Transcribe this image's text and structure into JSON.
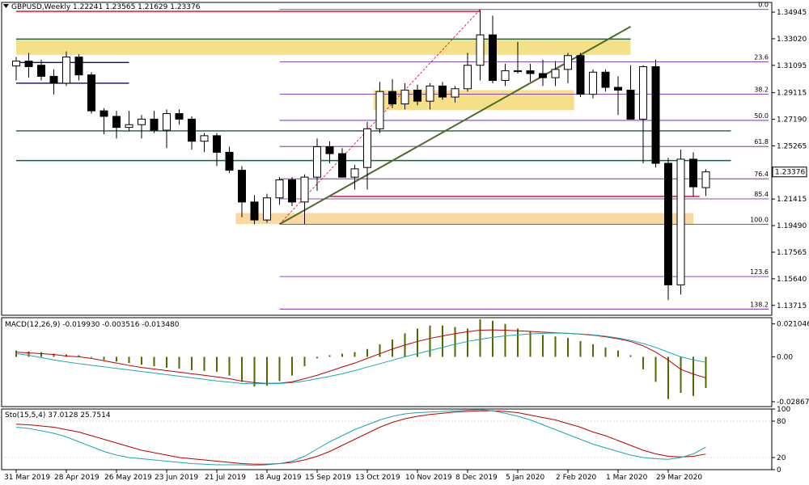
{
  "colors": {
    "background": "#ffffff",
    "grid_frame": "#000000",
    "bull_candle": "#ffffff",
    "bear_candle": "#000000",
    "fib_line": "#6a0dad",
    "red_level": "#e0002a",
    "green_level": "#1f5a3a",
    "trend_line": "#4e6b2a",
    "zone_yellow": "#f5e08a",
    "zone_orange": "#f9d9a3",
    "macd_hist": "#4e6b00",
    "macd_signal": "#c00000",
    "macd_line": "#1aa7b5",
    "sto_main": "#1aa7b5",
    "sto_signal": "#c00000",
    "price_box": "#ffffff"
  },
  "chart_data": [
    {
      "type": "candlestick",
      "title": "GBPUSD,Weekly",
      "ohlc_header": "1.22241 1.23565 1.21629 1.23376",
      "current_price_label": "1.23376",
      "yticks": [
        "1.34945",
        "1.33020",
        "1.31095",
        "1.29115",
        "1.27190",
        "1.25265",
        "1.23340",
        "1.21415",
        "1.19490",
        "1.17565",
        "1.15640",
        "1.13715"
      ],
      "ylim": [
        1.13,
        1.3565
      ],
      "xticks": [
        {
          "label": "31 Mar 2019",
          "i": 0
        },
        {
          "label": "28 Apr 2019",
          "i": 4
        },
        {
          "label": "26 May 2019",
          "i": 8
        },
        {
          "label": "23 Jun 2019",
          "i": 12
        },
        {
          "label": "21 Jul 2019",
          "i": 16
        },
        {
          "label": "18 Aug 2019",
          "i": 20
        },
        {
          "label": "15 Sep 2019",
          "i": 24
        },
        {
          "label": "13 Oct 2019",
          "i": 28
        },
        {
          "label": "10 Nov 2019",
          "i": 32
        },
        {
          "label": "8 Dec 2019",
          "i": 36
        },
        {
          "label": "5 Jan 2020",
          "i": 40
        },
        {
          "label": "2 Feb 2020",
          "i": 44
        },
        {
          "label": "1 Mar 2020",
          "i": 48
        },
        {
          "label": "29 Mar 2020",
          "i": 52
        }
      ],
      "candles": [
        {
          "o": 1.3105,
          "h": 1.317,
          "l": 1.3,
          "c": 1.314
        },
        {
          "o": 1.314,
          "h": 1.32,
          "l": 1.302,
          "c": 1.31
        },
        {
          "o": 1.311,
          "h": 1.315,
          "l": 1.3,
          "c": 1.303
        },
        {
          "o": 1.303,
          "h": 1.308,
          "l": 1.29,
          "c": 1.298
        },
        {
          "o": 1.298,
          "h": 1.321,
          "l": 1.296,
          "c": 1.317
        },
        {
          "o": 1.317,
          "h": 1.319,
          "l": 1.3,
          "c": 1.304
        },
        {
          "o": 1.304,
          "h": 1.306,
          "l": 1.276,
          "c": 1.278
        },
        {
          "o": 1.278,
          "h": 1.28,
          "l": 1.261,
          "c": 1.274
        },
        {
          "o": 1.274,
          "h": 1.278,
          "l": 1.258,
          "c": 1.266
        },
        {
          "o": 1.266,
          "h": 1.278,
          "l": 1.263,
          "c": 1.268
        },
        {
          "o": 1.268,
          "h": 1.275,
          "l": 1.258,
          "c": 1.272
        },
        {
          "o": 1.272,
          "h": 1.278,
          "l": 1.262,
          "c": 1.264
        },
        {
          "o": 1.264,
          "h": 1.279,
          "l": 1.251,
          "c": 1.276
        },
        {
          "o": 1.276,
          "h": 1.279,
          "l": 1.268,
          "c": 1.272
        },
        {
          "o": 1.272,
          "h": 1.274,
          "l": 1.25,
          "c": 1.256
        },
        {
          "o": 1.256,
          "h": 1.262,
          "l": 1.248,
          "c": 1.26
        },
        {
          "o": 1.26,
          "h": 1.262,
          "l": 1.238,
          "c": 1.248
        },
        {
          "o": 1.248,
          "h": 1.252,
          "l": 1.233,
          "c": 1.235
        },
        {
          "o": 1.235,
          "h": 1.238,
          "l": 1.201,
          "c": 1.212
        },
        {
          "o": 1.212,
          "h": 1.217,
          "l": 1.196,
          "c": 1.199
        },
        {
          "o": 1.199,
          "h": 1.218,
          "l": 1.197,
          "c": 1.215
        },
        {
          "o": 1.215,
          "h": 1.23,
          "l": 1.21,
          "c": 1.228
        },
        {
          "o": 1.228,
          "h": 1.23,
          "l": 1.209,
          "c": 1.212
        },
        {
          "o": 1.212,
          "h": 1.232,
          "l": 1.196,
          "c": 1.23
        },
        {
          "o": 1.23,
          "h": 1.258,
          "l": 1.22,
          "c": 1.252
        },
        {
          "o": 1.252,
          "h": 1.256,
          "l": 1.24,
          "c": 1.247
        },
        {
          "o": 1.247,
          "h": 1.251,
          "l": 1.23,
          "c": 1.23
        },
        {
          "o": 1.23,
          "h": 1.239,
          "l": 1.221,
          "c": 1.236
        },
        {
          "o": 1.237,
          "h": 1.27,
          "l": 1.221,
          "c": 1.265
        },
        {
          "o": 1.265,
          "h": 1.299,
          "l": 1.262,
          "c": 1.292
        },
        {
          "o": 1.292,
          "h": 1.301,
          "l": 1.28,
          "c": 1.283
        },
        {
          "o": 1.283,
          "h": 1.298,
          "l": 1.279,
          "c": 1.293
        },
        {
          "o": 1.293,
          "h": 1.297,
          "l": 1.282,
          "c": 1.285
        },
        {
          "o": 1.285,
          "h": 1.298,
          "l": 1.279,
          "c": 1.296
        },
        {
          "o": 1.296,
          "h": 1.299,
          "l": 1.286,
          "c": 1.288
        },
        {
          "o": 1.288,
          "h": 1.296,
          "l": 1.284,
          "c": 1.294
        },
        {
          "o": 1.294,
          "h": 1.32,
          "l": 1.292,
          "c": 1.311
        },
        {
          "o": 1.311,
          "h": 1.351,
          "l": 1.3,
          "c": 1.333
        },
        {
          "o": 1.333,
          "h": 1.347,
          "l": 1.298,
          "c": 1.3
        },
        {
          "o": 1.3,
          "h": 1.312,
          "l": 1.296,
          "c": 1.307
        },
        {
          "o": 1.307,
          "h": 1.328,
          "l": 1.305,
          "c": 1.307
        },
        {
          "o": 1.307,
          "h": 1.312,
          "l": 1.299,
          "c": 1.305
        },
        {
          "o": 1.305,
          "h": 1.315,
          "l": 1.296,
          "c": 1.302
        },
        {
          "o": 1.302,
          "h": 1.314,
          "l": 1.296,
          "c": 1.308
        },
        {
          "o": 1.308,
          "h": 1.32,
          "l": 1.298,
          "c": 1.318
        },
        {
          "o": 1.318,
          "h": 1.32,
          "l": 1.288,
          "c": 1.29
        },
        {
          "o": 1.29,
          "h": 1.308,
          "l": 1.287,
          "c": 1.306
        },
        {
          "o": 1.306,
          "h": 1.308,
          "l": 1.292,
          "c": 1.295
        },
        {
          "o": 1.295,
          "h": 1.303,
          "l": 1.275,
          "c": 1.293
        },
        {
          "o": 1.293,
          "h": 1.311,
          "l": 1.272,
          "c": 1.272
        },
        {
          "o": 1.272,
          "h": 1.311,
          "l": 1.24,
          "c": 1.31
        },
        {
          "o": 1.31,
          "h": 1.315,
          "l": 1.237,
          "c": 1.24
        },
        {
          "o": 1.24,
          "h": 1.244,
          "l": 1.141,
          "c": 1.152
        },
        {
          "o": 1.152,
          "h": 1.25,
          "l": 1.145,
          "c": 1.243
        },
        {
          "o": 1.243,
          "h": 1.248,
          "l": 1.216,
          "c": 1.223
        },
        {
          "o": 1.2224,
          "h": 1.2357,
          "l": 1.2163,
          "c": 1.2338
        }
      ],
      "fib_levels": [
        {
          "label": "0.0",
          "price": 1.3514
        },
        {
          "label": "23.6",
          "price": 1.3134
        },
        {
          "label": "38.2",
          "price": 1.29
        },
        {
          "label": "50.0",
          "price": 1.2711
        },
        {
          "label": "61.8",
          "price": 1.2522
        },
        {
          "label": "76.4",
          "price": 1.2288
        },
        {
          "label": "85.4",
          "price": 1.2143
        },
        {
          "label": "100.0",
          "price": 1.1959
        },
        {
          "label": "123.6",
          "price": 1.158
        },
        {
          "label": "138.2",
          "price": 1.1345
        }
      ],
      "horizontal_levels": [
        {
          "kind": "red",
          "price": 1.35,
          "from": 0,
          "to": 37
        },
        {
          "kind": "red",
          "price": 1.216,
          "from": 25,
          "to": 54.5
        },
        {
          "kind": "green",
          "price": 1.33,
          "from": 0,
          "to": 49
        },
        {
          "kind": "green",
          "price": 1.2635,
          "from": 0,
          "to": 57
        },
        {
          "kind": "green",
          "price": 1.242,
          "from": 0,
          "to": 57
        },
        {
          "kind": "navy",
          "price": 1.313,
          "from": 0,
          "to": 9
        },
        {
          "kind": "navy",
          "price": 1.298,
          "from": 0,
          "to": 9
        }
      ],
      "zones": [
        {
          "kind": "yellow",
          "top": 1.33,
          "bottom": 1.3185,
          "from": 0,
          "to": 49
        },
        {
          "kind": "yellow",
          "top": 1.293,
          "bottom": 1.2785,
          "from": 28.5,
          "to": 44.5
        },
        {
          "kind": "orange",
          "top": 1.204,
          "bottom": 1.196,
          "from": 17.5,
          "to": 54
        }
      ],
      "trend_line": {
        "from_i": 21,
        "from_p": 1.1959,
        "to_i": 49,
        "to_p": 1.339
      },
      "fib_anchor": {
        "from_i": 21,
        "from_p": 1.1959,
        "to_i": 37,
        "to_p": 1.3514
      }
    },
    {
      "type": "macd",
      "title": "MACD(12,26,9) -0.019930 -0.003516 -0.013480",
      "yticks": [
        "0.021046",
        "0.00",
        "-0.028671"
      ],
      "ylim": [
        -0.0318,
        0.025
      ],
      "histogram": [
        0.004,
        0.0035,
        0.003,
        0.002,
        0.0015,
        0.001,
        -0.0005,
        -0.002,
        -0.003,
        -0.004,
        -0.005,
        -0.006,
        -0.007,
        -0.0075,
        -0.0085,
        -0.009,
        -0.0095,
        -0.012,
        -0.016,
        -0.019,
        -0.0185,
        -0.0155,
        -0.012,
        -0.006,
        -0.001,
        0.001,
        0.002,
        0.003,
        0.005,
        0.008,
        0.011,
        0.015,
        0.018,
        0.02,
        0.02,
        0.019,
        0.018,
        0.024,
        0.023,
        0.021,
        0.018,
        0.016,
        0.014,
        0.013,
        0.012,
        0.01,
        0.008,
        0.006,
        0.004,
        0.001,
        -0.008,
        -0.016,
        -0.027,
        -0.023,
        -0.025,
        -0.0199
      ],
      "signal": [
        0.003,
        0.0025,
        0.002,
        0.0015,
        0.0005,
        0.0,
        -0.001,
        -0.0025,
        -0.004,
        -0.0055,
        -0.0068,
        -0.0078,
        -0.0088,
        -0.0098,
        -0.0108,
        -0.0118,
        -0.0128,
        -0.014,
        -0.0155,
        -0.0165,
        -0.017,
        -0.0168,
        -0.016,
        -0.014,
        -0.0118,
        -0.0092,
        -0.0065,
        -0.004,
        -0.001,
        0.002,
        0.005,
        0.0075,
        0.0098,
        0.0118,
        0.0133,
        0.0148,
        0.016,
        0.017,
        0.0172,
        0.017,
        0.0166,
        0.0162,
        0.0158,
        0.0154,
        0.015,
        0.0145,
        0.0138,
        0.0128,
        0.0115,
        0.0098,
        0.007,
        0.003,
        -0.002,
        -0.008,
        -0.011,
        -0.0135
      ],
      "macd": [
        0.002,
        0.001,
        -0.0005,
        -0.002,
        -0.0032,
        -0.0044,
        -0.0054,
        -0.0064,
        -0.0074,
        -0.0084,
        -0.0094,
        -0.0104,
        -0.0114,
        -0.0124,
        -0.0134,
        -0.0144,
        -0.0154,
        -0.0162,
        -0.017,
        -0.0172,
        -0.0172,
        -0.017,
        -0.0165,
        -0.0155,
        -0.014,
        -0.0125,
        -0.0108,
        -0.0088,
        -0.0066,
        -0.0044,
        -0.0022,
        0.0,
        0.002,
        0.004,
        0.006,
        0.008,
        0.0098,
        0.0112,
        0.0124,
        0.0134,
        0.014,
        0.0146,
        0.015,
        0.0152,
        0.015,
        0.0146,
        0.014,
        0.0132,
        0.012,
        0.0105,
        0.0085,
        0.006,
        0.003,
        0.0,
        -0.002,
        -0.0035
      ]
    },
    {
      "type": "stochastic",
      "title": "Sto(15,5,4) 37.0128 25.7514",
      "yticks": [
        "100",
        "80",
        "20",
        "0"
      ],
      "ylim": [
        0,
        100
      ],
      "main": [
        70,
        68,
        64,
        60,
        54,
        46,
        38,
        30,
        24,
        20,
        18,
        16,
        14,
        12,
        10,
        9,
        8,
        8,
        8,
        7,
        8,
        10,
        14,
        22,
        34,
        46,
        56,
        66,
        74,
        82,
        88,
        92,
        94,
        95,
        96,
        97,
        98,
        99,
        97,
        93,
        88,
        82,
        74,
        66,
        58,
        50,
        42,
        36,
        30,
        24,
        20,
        18,
        17,
        20,
        26,
        37
      ],
      "signal": [
        75,
        74,
        72,
        70,
        66,
        62,
        56,
        50,
        44,
        38,
        32,
        28,
        24,
        20,
        18,
        16,
        14,
        12,
        10,
        9,
        9,
        10,
        12,
        16,
        22,
        30,
        40,
        50,
        60,
        70,
        78,
        84,
        88,
        91,
        93,
        95,
        96,
        97,
        97,
        96,
        94,
        90,
        86,
        82,
        76,
        70,
        62,
        56,
        48,
        40,
        32,
        26,
        22,
        21,
        22,
        25.75
      ]
    }
  ]
}
